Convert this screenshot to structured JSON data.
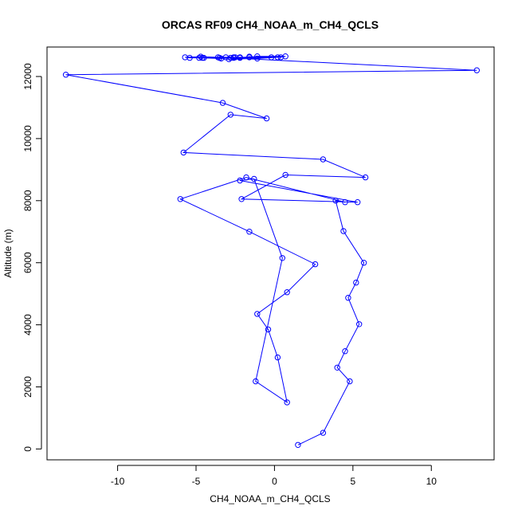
{
  "chart_data": {
    "type": "line",
    "title": "ORCAS RF09 CH4_NOAA_m_CH4_QCLS",
    "xlabel": "CH4_NOAA_m_CH4_QCLS",
    "ylabel": "Altitude (m)",
    "xlim": [
      -14.5,
      14
    ],
    "ylim": [
      -350,
      12950
    ],
    "xticks": [
      -10,
      -5,
      0,
      5,
      10
    ],
    "yticks": [
      0,
      2000,
      4000,
      6000,
      8000,
      10000,
      12000
    ],
    "grid": false,
    "legend": "none",
    "markers": "open-circle",
    "colors": {
      "series": "#0000ff",
      "axes": "#000000"
    },
    "series": [
      {
        "x": [
          1.5,
          3.1,
          4.8,
          4.0,
          4.5,
          5.4,
          4.7,
          5.2,
          5.7,
          4.4,
          3.9,
          4.5,
          -1.8,
          -6.0,
          -1.6,
          2.6,
          0.8,
          -1.1,
          -0.4,
          0.2,
          0.8,
          -1.2,
          0.5,
          -1.3,
          -2.2,
          5.3,
          -2.1,
          0.7,
          5.8,
          3.1,
          -5.8,
          -2.8,
          -0.5,
          -3.3,
          -13.3,
          12.9,
          -3.6,
          -1.6,
          -0.2,
          -1.1,
          0.7,
          0.4,
          -1.6,
          -2.9,
          -1.1,
          0.2,
          -2.2,
          -2.5,
          -2.6,
          -2.2,
          -3.1,
          -3.5,
          -2.6,
          -4.5,
          -4.6,
          -5.4,
          -5.7,
          -4.7,
          -2.8,
          -3.4,
          -4.8
        ],
        "y": [
          130,
          520,
          2180,
          2620,
          3150,
          4020,
          4870,
          5360,
          6000,
          7020,
          8000,
          7950,
          8750,
          8050,
          7000,
          5950,
          5050,
          4350,
          3850,
          2950,
          1500,
          2180,
          6150,
          8700,
          8650,
          7950,
          8050,
          8830,
          8750,
          9330,
          9550,
          10770,
          10650,
          11150,
          12060,
          12200,
          12620,
          12620,
          12620,
          12650,
          12650,
          12620,
          12640,
          12560,
          12580,
          12620,
          12600,
          12620,
          12620,
          12620,
          12620,
          12600,
          12600,
          12600,
          12600,
          12600,
          12620,
          12640,
          12600,
          12580,
          12600
        ]
      }
    ]
  }
}
